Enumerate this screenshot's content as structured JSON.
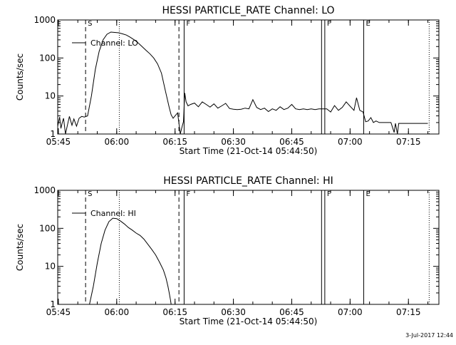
{
  "chart_data": [
    {
      "type": "line",
      "title": "HESSI PARTICLE_RATE Channel: LO",
      "xlabel": "Start Time (21-Oct-14 05:44:50)",
      "ylabel": "Counts/sec",
      "y_scale": "log",
      "ylim": [
        1,
        1000
      ],
      "xlim": [
        "05:44:50",
        "07:22:50"
      ],
      "x_ticks": [
        "05:45",
        "06:00",
        "06:15",
        "06:30",
        "06:45",
        "07:00",
        "07:15"
      ],
      "y_ticks": [
        "1",
        "10",
        "100",
        "1000"
      ],
      "legend": {
        "label": "Channel: LO",
        "placement": "upper-left"
      },
      "markers": [
        {
          "time": "05:52:00",
          "style": "dashed",
          "label": "S"
        },
        {
          "time": "06:00:40",
          "style": "dotted",
          "label": ""
        },
        {
          "time": "06:16:00",
          "style": "dashed",
          "label": ""
        },
        {
          "time": "06:17:20",
          "style": "solid",
          "label": "F"
        },
        {
          "time": "06:52:40",
          "style": "solid",
          "label": ""
        },
        {
          "time": "06:53:30",
          "style": "solid",
          "label": "F"
        },
        {
          "time": "07:03:30",
          "style": "solid",
          "label": "E"
        },
        {
          "time": "07:20:20",
          "style": "dotted",
          "label": ""
        }
      ],
      "series": [
        {
          "name": "Channel: LO",
          "x": [
            "05:44:50",
            "05:45:20",
            "05:45:40",
            "05:46:00",
            "05:46:20",
            "05:46:50",
            "05:47:20",
            "05:47:50",
            "05:48:30",
            "05:49:00",
            "05:49:40",
            "05:50:20",
            "05:51:00",
            "05:51:40",
            "05:52:30",
            "05:53:30",
            "05:54:30",
            "05:55:30",
            "05:56:30",
            "05:57:30",
            "05:58:30",
            "05:59:30",
            "06:00:30",
            "06:01:30",
            "06:02:30",
            "06:03:30",
            "06:04:30",
            "06:05:30",
            "06:06:30",
            "06:07:30",
            "06:08:30",
            "06:09:30",
            "06:10:30",
            "06:11:30",
            "06:12:30",
            "06:13:30",
            "06:14:00",
            "06:14:30",
            "06:15:00",
            "06:15:40",
            "06:16:20",
            "06:16:50",
            "06:17:10",
            "06:17:30",
            "06:17:50",
            "06:18:20",
            "06:19:00",
            "06:20:00",
            "06:21:00",
            "06:22:00",
            "06:23:00",
            "06:24:00",
            "06:25:00",
            "06:26:00",
            "06:27:00",
            "06:28:00",
            "06:29:00",
            "06:30:00",
            "06:31:00",
            "06:32:00",
            "06:33:00",
            "06:34:00",
            "06:35:00",
            "06:36:00",
            "06:37:00",
            "06:38:00",
            "06:39:00",
            "06:40:00",
            "06:41:00",
            "06:42:00",
            "06:43:00",
            "06:44:00",
            "06:45:00",
            "06:46:00",
            "06:47:00",
            "06:48:00",
            "06:49:00",
            "06:50:00",
            "06:51:00",
            "06:52:00",
            "06:54:00",
            "06:55:00",
            "06:56:00",
            "06:57:00",
            "06:58:00",
            "06:59:00",
            "07:00:00",
            "07:01:00",
            "07:01:40",
            "07:02:30",
            "07:03:20",
            "07:04:00",
            "07:04:40",
            "07:05:20",
            "07:06:00",
            "07:06:40",
            "07:07:30",
            "07:08:30",
            "07:09:30",
            "07:10:30",
            "07:11:20",
            "07:11:40",
            "07:12:10",
            "07:12:30",
            "07:13:30",
            "07:14:30",
            "07:15:30",
            "07:16:30",
            "07:17:30",
            "07:18:30",
            "07:19:30",
            "07:20:00"
          ],
          "values": [
            1.6,
            2.8,
            1.4,
            2.0,
            2.6,
            1.0,
            1.7,
            2.9,
            1.7,
            2.5,
            1.6,
            2.6,
            2.9,
            2.8,
            3.0,
            10,
            50,
            150,
            300,
            420,
            480,
            470,
            460,
            430,
            400,
            350,
            300,
            250,
            200,
            160,
            130,
            100,
            70,
            40,
            14,
            5,
            3.2,
            2.6,
            3.0,
            3.6,
            1.0,
            1.6,
            2.1,
            12,
            7,
            5.5,
            6,
            6.5,
            5.2,
            7,
            6,
            5.1,
            6.2,
            4.8,
            5.5,
            6.4,
            4.7,
            4.5,
            4.4,
            4.5,
            4.8,
            4.6,
            8,
            5,
            4.4,
            4.8,
            3.9,
            4.6,
            4.2,
            5.2,
            4.4,
            4.8,
            6,
            4.6,
            4.4,
            4.6,
            4.4,
            4.6,
            4.4,
            4.6,
            4.6,
            3.8,
            5.6,
            4.2,
            5,
            7,
            5.4,
            4.2,
            9,
            4.2,
            3.8,
            2.1,
            2.2,
            2.7,
            2.0,
            2.2,
            2.0,
            2.0,
            2.0,
            2.0,
            1.1,
            1.9,
            1.0,
            1.9,
            1.9,
            1.9,
            1.9,
            1.9,
            1.9,
            1.9,
            1.9,
            1.9
          ]
        }
      ]
    },
    {
      "type": "line",
      "title": "HESSI PARTICLE_RATE Channel: HI",
      "xlabel": "Start Time (21-Oct-14 05:44:50)",
      "ylabel": "Counts/sec",
      "y_scale": "log",
      "ylim": [
        1,
        1000
      ],
      "xlim": [
        "05:44:50",
        "07:22:50"
      ],
      "x_ticks": [
        "05:45",
        "06:00",
        "06:15",
        "06:30",
        "06:45",
        "07:00",
        "07:15"
      ],
      "y_ticks": [
        "1",
        "10",
        "100",
        "1000"
      ],
      "legend": {
        "label": "Channel: HI",
        "placement": "upper-left"
      },
      "markers": [
        {
          "time": "05:52:00",
          "style": "dashed",
          "label": "S"
        },
        {
          "time": "06:00:40",
          "style": "dotted",
          "label": ""
        },
        {
          "time": "06:16:00",
          "style": "dashed",
          "label": ""
        },
        {
          "time": "06:17:20",
          "style": "solid",
          "label": "F"
        },
        {
          "time": "06:52:40",
          "style": "solid",
          "label": ""
        },
        {
          "time": "06:53:30",
          "style": "solid",
          "label": "F"
        },
        {
          "time": "07:03:30",
          "style": "solid",
          "label": "E"
        },
        {
          "time": "07:20:20",
          "style": "dotted",
          "label": ""
        }
      ],
      "series": [
        {
          "name": "Channel: HI",
          "x": [
            "05:53:00",
            "05:54:00",
            "05:55:00",
            "05:56:00",
            "05:57:00",
            "05:58:00",
            "05:59:00",
            "06:00:00",
            "06:01:00",
            "06:02:00",
            "06:03:00",
            "06:04:00",
            "06:05:00",
            "06:06:00",
            "06:07:00",
            "06:08:00",
            "06:09:00",
            "06:10:00",
            "06:11:00",
            "06:12:00",
            "06:12:40",
            "06:13:10",
            "06:13:30",
            "06:13:50",
            "06:14:00"
          ],
          "values": [
            1.0,
            3,
            12,
            40,
            90,
            150,
            185,
            180,
            155,
            130,
            105,
            90,
            75,
            65,
            52,
            38,
            28,
            20,
            13,
            8,
            5,
            3,
            2,
            1.3,
            1.0
          ]
        }
      ]
    }
  ],
  "footer": {
    "timestamp": "3-Jul-2017 12:44"
  }
}
